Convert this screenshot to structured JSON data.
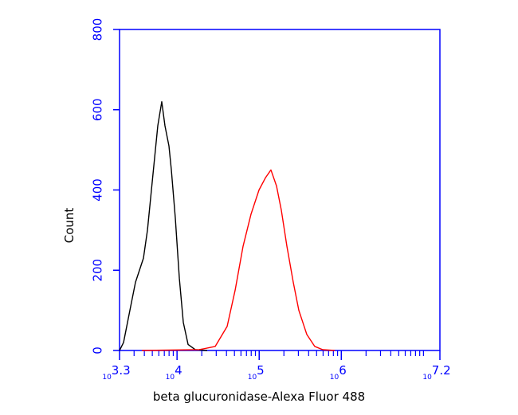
{
  "chart_data": {
    "type": "line",
    "x_label": "beta glucuronidase-Alexa Fluor 488",
    "y_label": "Count",
    "xscale": "log",
    "xlim": [
      1995.26,
      15848931.92
    ],
    "ylim": [
      0,
      800
    ],
    "xticks": [
      {
        "value": 1995.26,
        "label": {
          "base": "10",
          "exponent": "3.3"
        }
      },
      {
        "value": 10000,
        "label": {
          "base": "10",
          "exponent": "4"
        }
      },
      {
        "value": 100000,
        "label": {
          "base": "10",
          "exponent": "5"
        }
      },
      {
        "value": 1000000,
        "label": {
          "base": "10",
          "exponent": "6"
        }
      },
      {
        "value": 15848931.92,
        "label": {
          "base": "10",
          "exponent": "7.2"
        }
      }
    ],
    "xminorticks": [
      3000,
      4000,
      5000,
      6000,
      7000,
      8000,
      9000,
      20000,
      30000,
      40000,
      50000,
      60000,
      70000,
      80000,
      90000,
      200000,
      300000,
      400000,
      500000,
      600000,
      700000,
      800000,
      900000,
      2000000,
      3000000,
      4000000,
      5000000,
      6000000,
      7000000,
      8000000,
      9000000,
      10000000
    ],
    "yticks": [
      0,
      200,
      400,
      600,
      800
    ],
    "axis_color": "#0000ff",
    "series": [
      {
        "color": "#000000",
        "x": [
          1995,
          2233,
          2667,
          3119,
          3900,
          4365,
          5100,
          5830,
          6516,
          7125,
          7967,
          8526,
          9530,
          10666,
          11920,
          13630,
          16670,
          23280
        ],
        "values": [
          0,
          20,
          100,
          170,
          230,
          300,
          440,
          560,
          620,
          560,
          510,
          450,
          330,
          180,
          70,
          15,
          2,
          0
        ]
      },
      {
        "color": "#ff0000",
        "x": [
          3732,
          18620,
          29110,
          40740,
          50930,
          63680,
          79620,
          99540,
          118900,
          139000,
          162600,
          185900,
          217400,
          260000,
          303900,
          380000,
          475200,
          594300,
          830000
        ],
        "values": [
          0,
          2,
          10,
          60,
          150,
          260,
          340,
          400,
          430,
          450,
          410,
          350,
          260,
          170,
          100,
          40,
          10,
          2,
          0
        ]
      }
    ]
  }
}
